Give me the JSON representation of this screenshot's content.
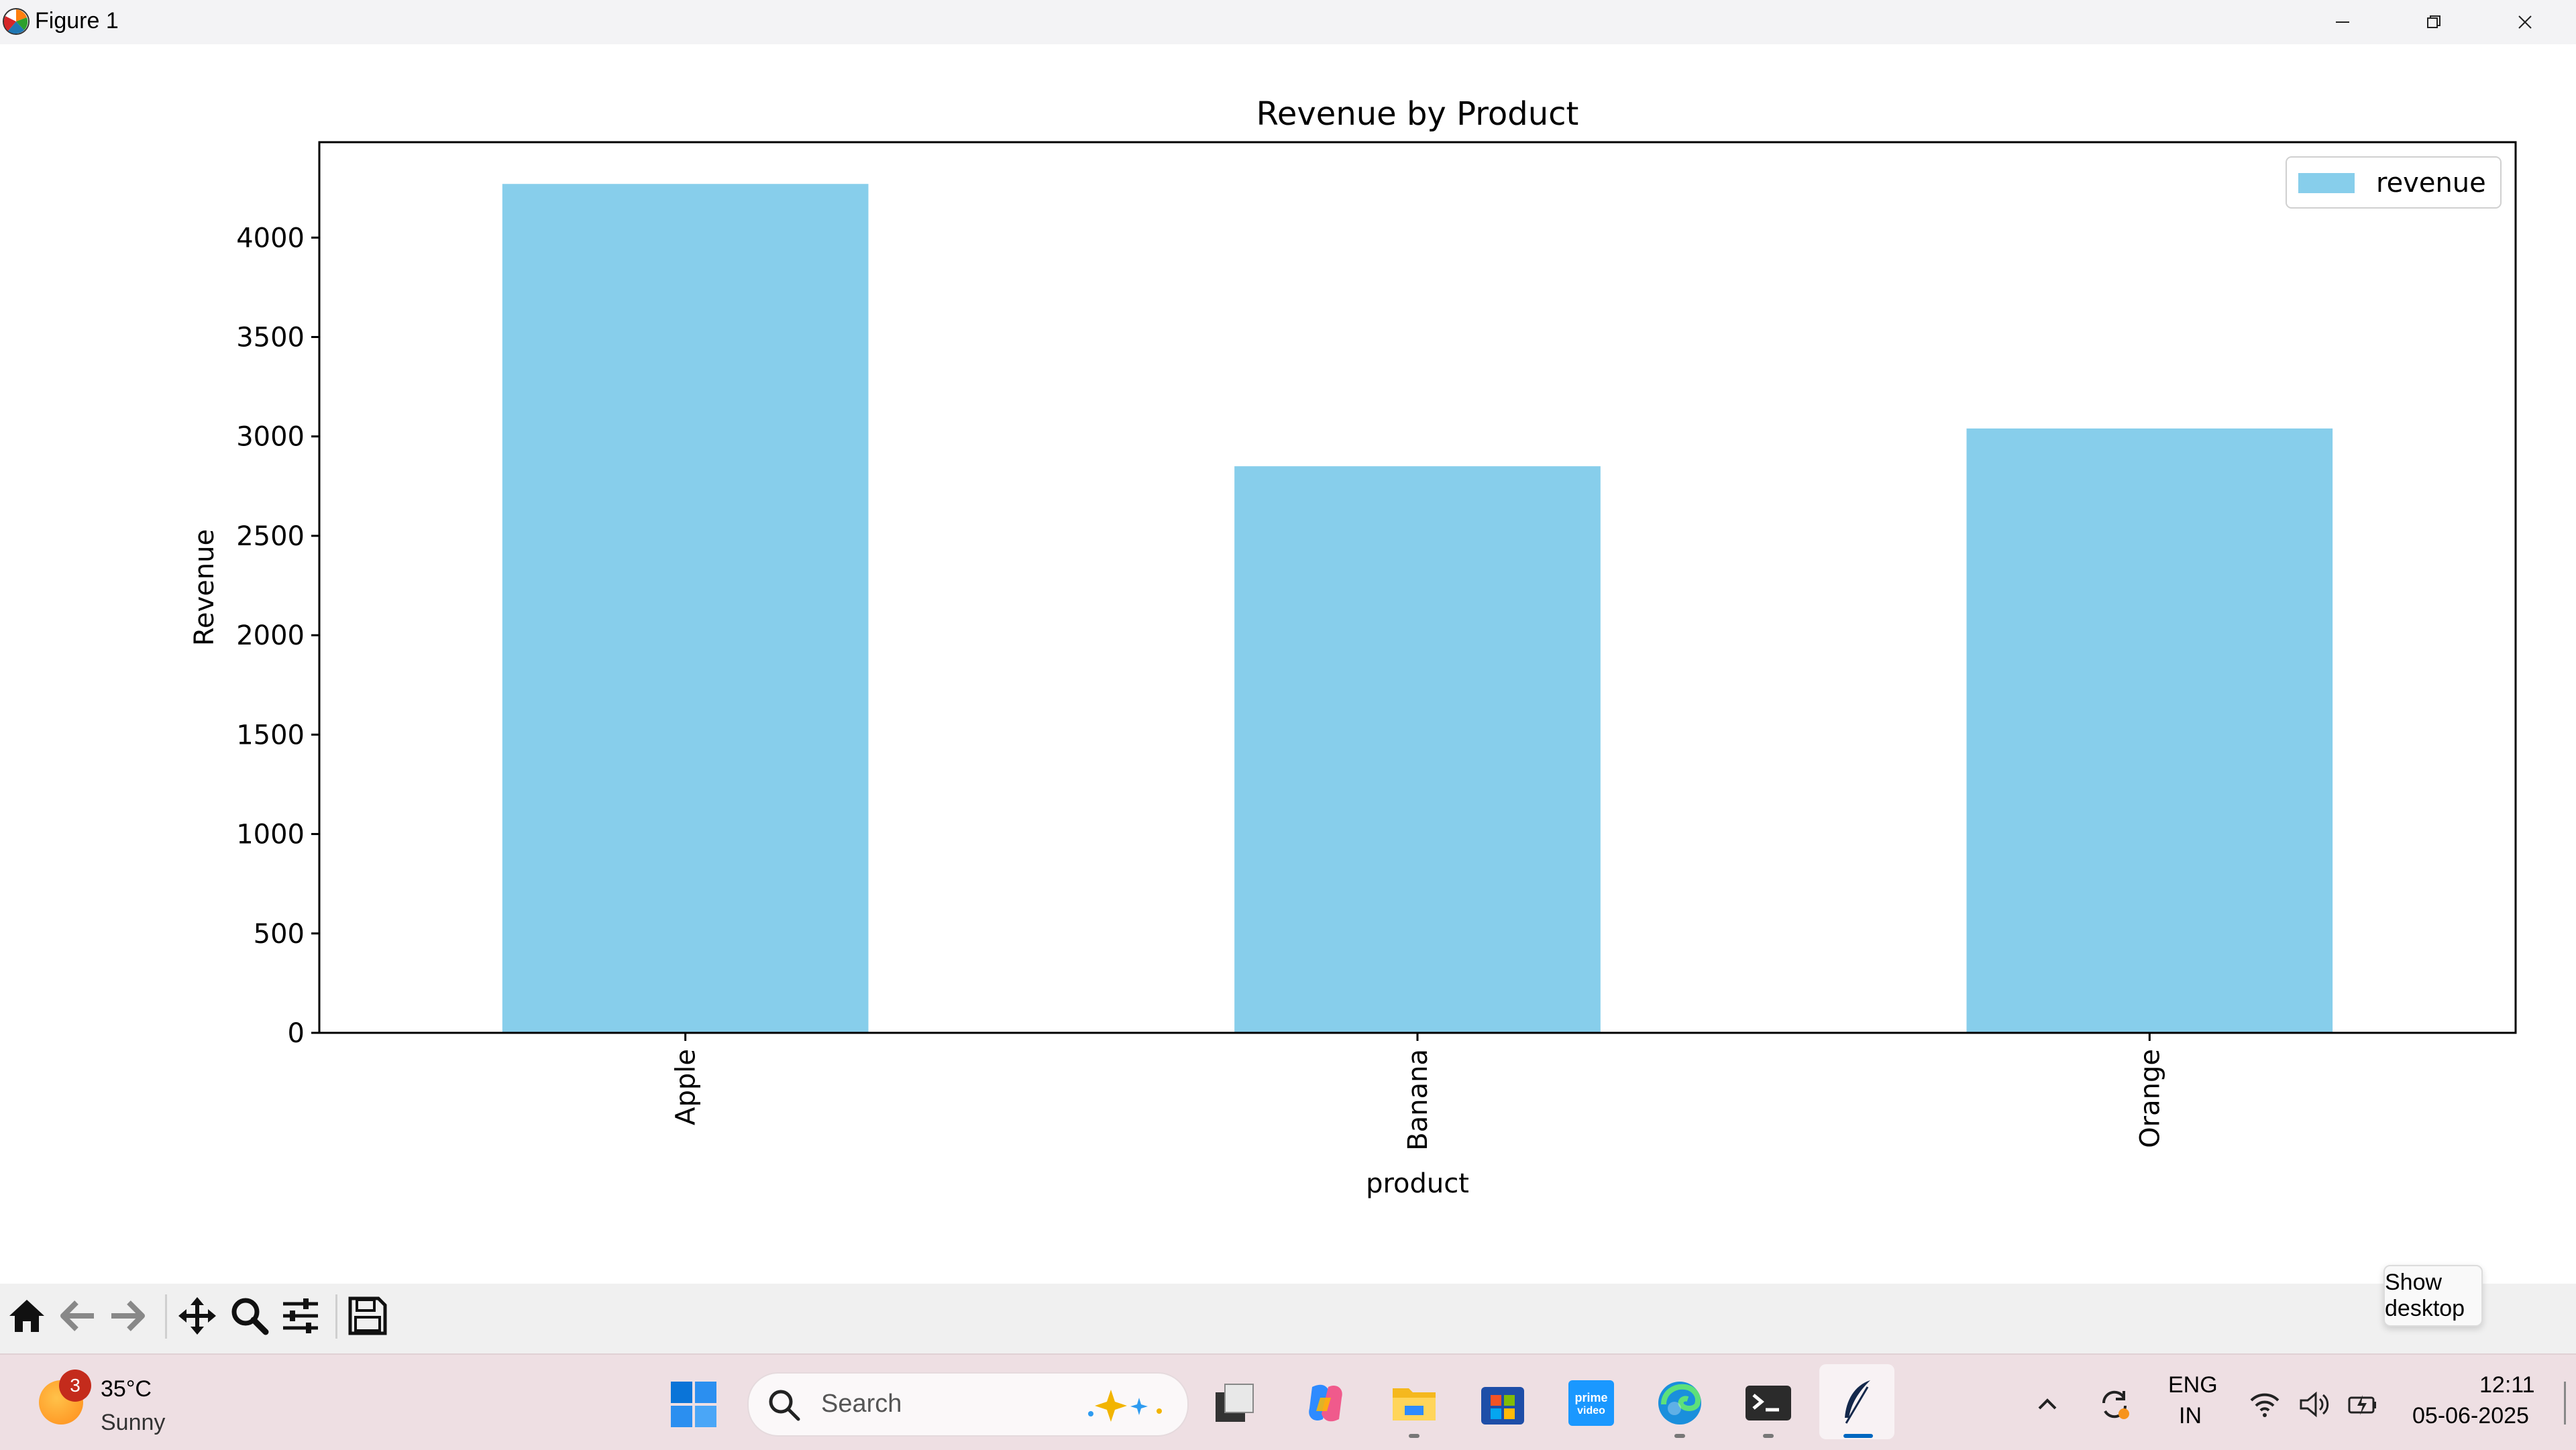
{
  "window": {
    "title": "Figure 1"
  },
  "chart_data": {
    "type": "bar",
    "title": "Revenue by Product",
    "xlabel": "product",
    "ylabel": "Revenue",
    "categories": [
      "Apple",
      "Banana",
      "Orange"
    ],
    "series": [
      {
        "name": "revenue",
        "values": [
          4270,
          2850,
          3040
        ],
        "color": "#87ceeb"
      }
    ],
    "ylim": [
      0,
      4480
    ],
    "yticks": [
      0,
      500,
      1000,
      1500,
      2000,
      2500,
      3000,
      3500,
      4000
    ],
    "ytick_labels": [
      "0",
      "500",
      "1000",
      "1500",
      "2000",
      "2500",
      "3000",
      "3500",
      "4000"
    ],
    "legend": {
      "entries": [
        "revenue"
      ],
      "placement": "top-right"
    },
    "grid": false,
    "xtick_rotation": 90
  },
  "toolbar": {
    "buttons": [
      {
        "name": "home",
        "icon": "home-icon"
      },
      {
        "name": "back",
        "icon": "arrow-left-icon"
      },
      {
        "name": "forward",
        "icon": "arrow-right-icon"
      },
      {
        "name": "pan",
        "icon": "move-icon"
      },
      {
        "name": "zoom",
        "icon": "magnifier-icon"
      },
      {
        "name": "configure-subplots",
        "icon": "sliders-icon"
      },
      {
        "name": "save",
        "icon": "floppy-disk-icon"
      }
    ]
  },
  "tooltip": {
    "text": "Show desktop"
  },
  "taskbar": {
    "weather": {
      "badge": "3",
      "temperature": "35°C",
      "condition": "Sunny"
    },
    "search": {
      "placeholder": "Search"
    },
    "apps": [
      "start-icon",
      "task-view-icon",
      "copilot-icon",
      "file-explorer-icon",
      "microsoft-store-icon",
      "prime-video-icon",
      "edge-icon",
      "terminal-icon",
      "feather-app-icon"
    ],
    "language": {
      "line1": "ENG",
      "line2": "IN"
    },
    "clock": {
      "time": "12:11",
      "date": "05-06-2025"
    }
  },
  "colors": {
    "bar": "#87ceeb",
    "taskbar": "#eedfe3",
    "titlebar": "#f3f3f5",
    "accent": "#0067c0"
  }
}
